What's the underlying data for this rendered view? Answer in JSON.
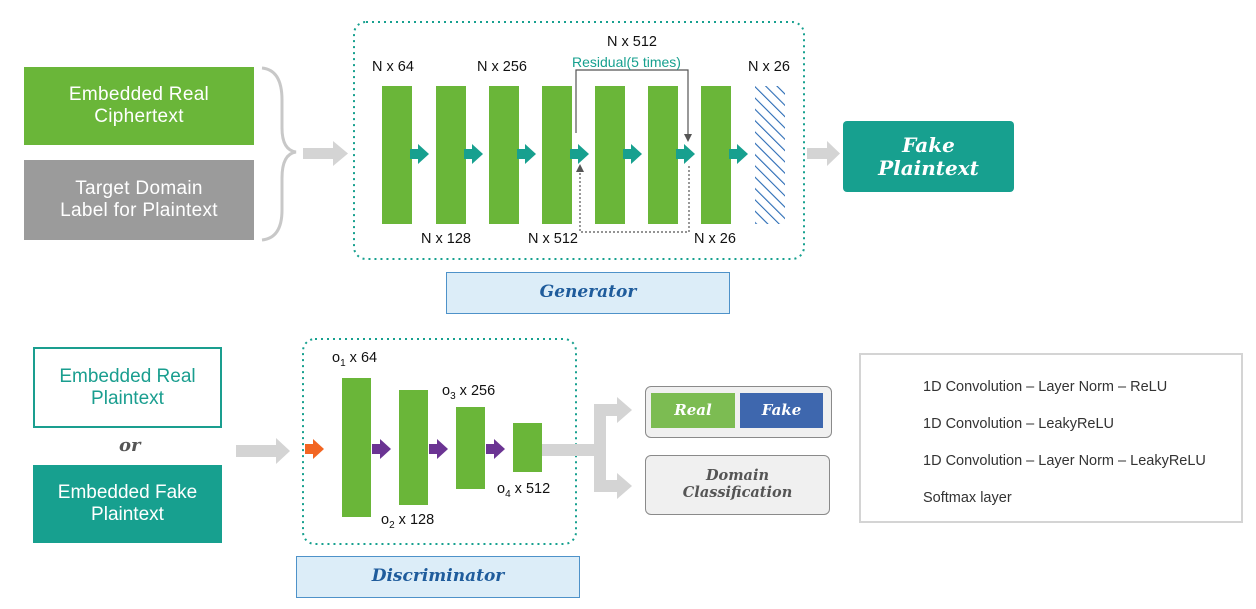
{
  "generator_inputs": {
    "real_ciphertext": "Embedded Real\nCiphertext",
    "target_domain_label": "Target Domain\nLabel for Plaintext"
  },
  "generator": {
    "label": "Generator",
    "dims_top": [
      "N x 64",
      "N x 256",
      "N x 512",
      "N x 26"
    ],
    "dims_bottom": [
      "N x 128",
      "N x 512",
      "N x 26"
    ],
    "residual": "Residual(5 times)",
    "output": "Fake\nPlaintext"
  },
  "discriminator_inputs": {
    "real_plaintext": "Embedded Real\nPlaintext",
    "or": "or",
    "fake_plaintext": "Embedded Fake\nPlaintext"
  },
  "discriminator": {
    "label": "Discriminator",
    "dims": {
      "o1": {
        "sym": "o",
        "sub": "1",
        "val": " x 64"
      },
      "o2": {
        "sym": "o",
        "sub": "2",
        "val": " x 128"
      },
      "o3": {
        "sym": "o",
        "sub": "3",
        "val": " x 256"
      },
      "o4": {
        "sym": "o",
        "sub": "4",
        "val": " x 512"
      }
    },
    "outputs": {
      "real": "Real",
      "fake": "Fake",
      "domain_classification": "Domain\nClassification"
    }
  },
  "legend": {
    "items": [
      {
        "text": "1D Convolution – Layer Norm – ReLU",
        "icon": "teal-arrow-icon",
        "color": "#17a08f"
      },
      {
        "text": "1D Convolution – LeakyReLU",
        "icon": "orange-arrow-icon",
        "color": "#f26522"
      },
      {
        "text": "1D Convolution – Layer Norm – LeakyReLU",
        "icon": "purple-arrow-icon",
        "color": "#6b3493"
      },
      {
        "text": "Softmax layer",
        "icon": "hatch-icon",
        "color": "#2a6bb5"
      }
    ]
  },
  "colors": {
    "layer_green": "#6ab639",
    "teal": "#17a08f",
    "connector_gray": "#d4d4d4"
  }
}
